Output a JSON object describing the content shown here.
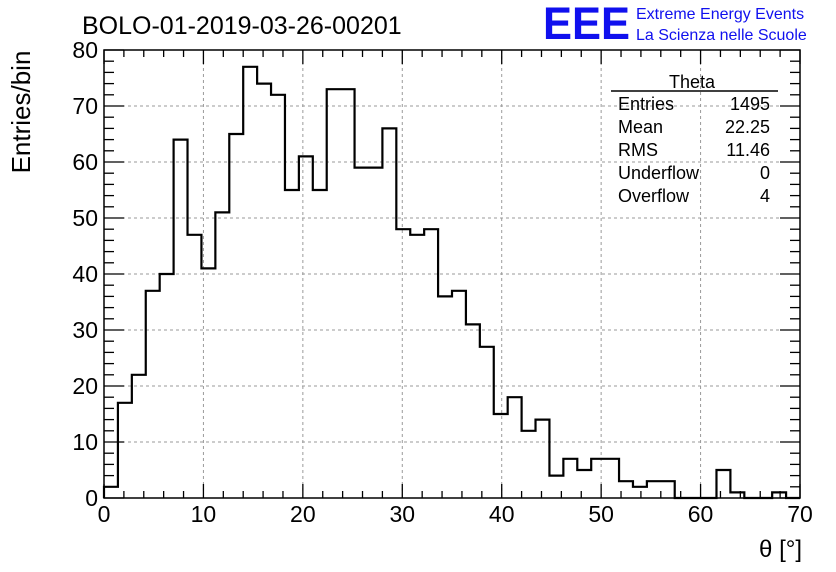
{
  "header": {
    "run_title": "BOLO-01-2019-03-26-00201",
    "logo_text": "EEE",
    "logo_line1": "Extreme Energy Events",
    "logo_line2": "La Scienza nelle Scuole"
  },
  "colors": {
    "frame": "#000000",
    "histogram": "#000000",
    "grid": "#9a9a9a",
    "logo": "#1010ee"
  },
  "stats_box": {
    "title": "Theta",
    "rows": [
      {
        "label": "Entries",
        "value": "1495"
      },
      {
        "label": "Mean",
        "value": "22.25"
      },
      {
        "label": "RMS",
        "value": "11.46"
      },
      {
        "label": "Underflow",
        "value": "0"
      },
      {
        "label": "Overflow",
        "value": "4"
      }
    ]
  },
  "chart_data": {
    "type": "bar",
    "style": "step-histogram",
    "title": "BOLO-01-2019-03-26-00201",
    "xlabel": "θ [°]",
    "ylabel": "Entries/bin",
    "xlim": [
      0,
      70
    ],
    "ylim": [
      0,
      80
    ],
    "grid": true,
    "bin_width": 1.4,
    "x_ticks": [
      0,
      10,
      20,
      30,
      40,
      50,
      60,
      70
    ],
    "y_ticks": [
      0,
      10,
      20,
      30,
      40,
      50,
      60,
      70,
      80
    ],
    "values": [
      2,
      17,
      22,
      37,
      40,
      64,
      47,
      41,
      51,
      65,
      77,
      74,
      72,
      55,
      61,
      55,
      73,
      73,
      59,
      59,
      66,
      48,
      47,
      48,
      36,
      37,
      31,
      27,
      15,
      18,
      12,
      14,
      4,
      7,
      5,
      7,
      7,
      3,
      2,
      3,
      3,
      0,
      0,
      0,
      5,
      1,
      0,
      0,
      1,
      0
    ]
  }
}
